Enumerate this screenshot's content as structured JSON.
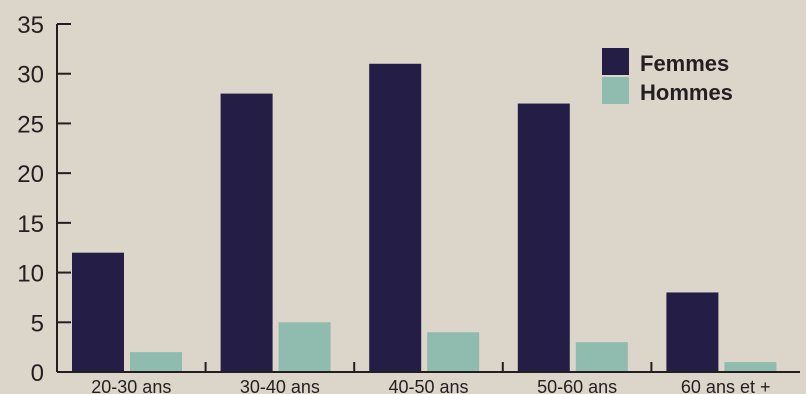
{
  "chart_data": {
    "type": "bar",
    "categories": [
      "20-30 ans",
      "30-40 ans",
      "40-50 ans",
      "50-60 ans",
      "60 ans et +"
    ],
    "series": [
      {
        "name": "Femmes",
        "values": [
          12,
          28,
          31,
          27,
          8
        ],
        "color": "#241e47"
      },
      {
        "name": "Hommes",
        "values": [
          2,
          5,
          4,
          3,
          1
        ],
        "color": "#8fbcae"
      }
    ],
    "yticks": [
      0,
      5,
      10,
      15,
      20,
      25,
      30,
      35
    ],
    "ylim": [
      0,
      35
    ],
    "title": "",
    "xlabel": "",
    "ylabel": "",
    "grid": false,
    "legend": "top-right"
  },
  "colors": {
    "background": "#dcd5c9",
    "axis": "#231f20",
    "text": "#231f20"
  }
}
